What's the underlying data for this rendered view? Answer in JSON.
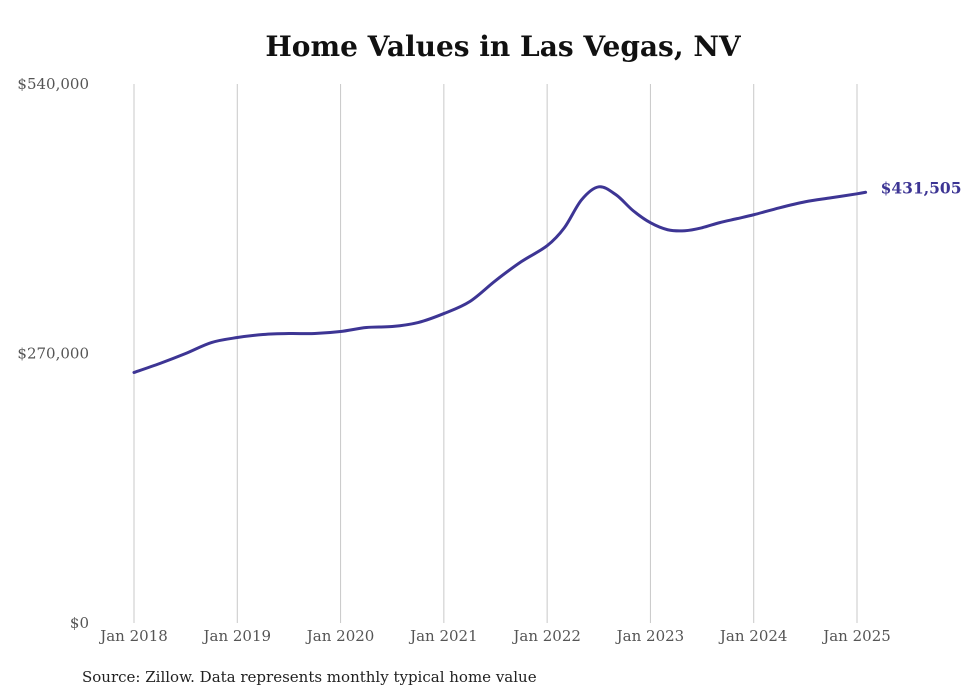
{
  "colors": {
    "line": "#3d3594",
    "gridline": "#c8c8c8",
    "tick_text": "#555555",
    "background": "#ffffff"
  },
  "source_note": "Source: Zillow. Data represents monthly typical home value",
  "chart_data": {
    "type": "line",
    "title": "Home Values in Las Vegas, NV",
    "xlabel": "",
    "ylabel": "",
    "ylim": [
      0,
      540000
    ],
    "y_ticks": [
      0,
      270000,
      540000
    ],
    "y_tick_labels": [
      "$0",
      "$270,000",
      "$540,000"
    ],
    "x_tick_dates": [
      "2018-01",
      "2019-01",
      "2020-01",
      "2021-01",
      "2022-01",
      "2023-01",
      "2024-01",
      "2025-01"
    ],
    "x_tick_labels": [
      "Jan 2018",
      "Jan 2019",
      "Jan 2020",
      "Jan 2021",
      "Jan 2022",
      "Jan 2023",
      "Jan 2024",
      "Jan 2025"
    ],
    "x_range": [
      "2018-01",
      "2025-02"
    ],
    "grid": "vertical",
    "end_label": "$431,505",
    "series": [
      {
        "x": [
          "2018-01",
          "2018-04",
          "2018-07",
          "2018-10",
          "2019-01",
          "2019-04",
          "2019-07",
          "2019-10",
          "2020-01",
          "2020-04",
          "2020-07",
          "2020-10",
          "2021-01",
          "2021-04",
          "2021-07",
          "2021-10",
          "2022-01",
          "2022-03",
          "2022-05",
          "2022-07",
          "2022-09",
          "2022-11",
          "2023-01",
          "2023-03",
          "2023-05",
          "2023-07",
          "2023-09",
          "2023-11",
          "2024-01",
          "2024-04",
          "2024-07",
          "2024-10",
          "2025-01",
          "2025-02"
        ],
        "values": [
          251000,
          260000,
          270000,
          281000,
          286000,
          289000,
          290000,
          290000,
          292000,
          296000,
          297000,
          301000,
          310000,
          322000,
          343000,
          362000,
          378000,
          396000,
          424000,
          437000,
          429000,
          413000,
          401000,
          394000,
          393000,
          396000,
          401000,
          405000,
          409000,
          416000,
          422000,
          426000,
          430000,
          431505
        ]
      }
    ]
  }
}
